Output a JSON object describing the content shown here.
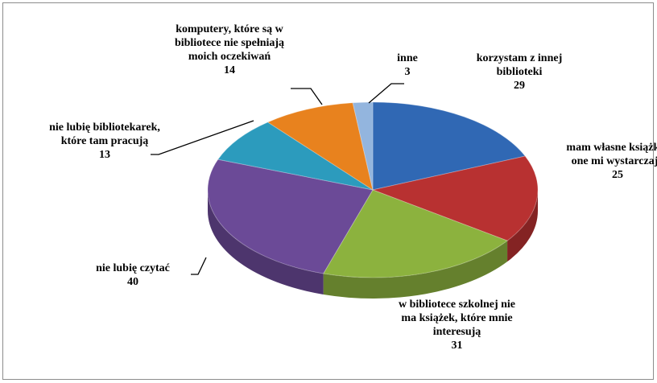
{
  "chart_data": {
    "type": "pie3d",
    "categories": [
      "korzystam z innej biblioteki",
      "mam własne książki i one mi wystarczają",
      "w bibliotece szkolnej nie ma książek, które mnie interesują",
      "nie lubię czytać",
      "nie lubię bibliotekarek, które tam pracują",
      "komputery, które są w bibliotece nie spełniają moich oczekiwań",
      "inne"
    ],
    "values": [
      29,
      25,
      31,
      40,
      13,
      14,
      3
    ],
    "colors": [
      "#3068b4",
      "#b83131",
      "#8cb23e",
      "#6b4a97",
      "#2c9bbd",
      "#e8821e",
      "#93b5de"
    ]
  }
}
